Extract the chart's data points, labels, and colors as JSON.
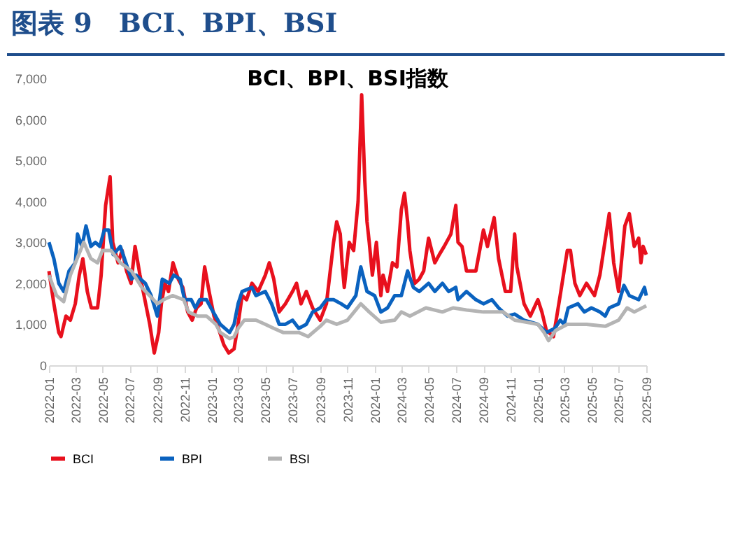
{
  "chart_data": {
    "type": "line",
    "title": "图表 9　BCI、BPI、BSI",
    "subtitle": "BCI、BPI、BSI指数",
    "xlim": [
      "2022-01-01",
      "2025-09-01"
    ],
    "xticks": [
      "2022-01",
      "2022-03",
      "2022-05",
      "2022-07",
      "2022-09",
      "2022-11",
      "2023-01",
      "2023-03",
      "2023-05",
      "2023-07",
      "2023-09",
      "2023-11",
      "2024-01",
      "2024-03",
      "2024-05",
      "2024-07",
      "2024-09",
      "2024-11",
      "2025-01",
      "2025-03",
      "2025-05",
      "2025-07",
      "2025-09"
    ],
    "ylim": [
      0,
      7000
    ],
    "yticks": [
      0,
      {
        "value": 1000,
        "label": "1,000"
      },
      {
        "value": 2000,
        "label": "2,000"
      },
      {
        "value": 3000,
        "label": "3,000"
      },
      {
        "value": 4000,
        "label": "4,000"
      },
      {
        "value": 5000,
        "label": "5,000"
      },
      {
        "value": 6000,
        "label": "6,000"
      },
      {
        "value": 7000,
        "label": "7,000"
      }
    ],
    "grid": false,
    "legend": "bottom",
    "marker": "none",
    "line_style": "solid",
    "series": [
      {
        "name": "BCI",
        "color": "#e8101d",
        "x": [
          "2022-01-01",
          "2022-01-12",
          "2022-01-23",
          "2022-01-28",
          "2022-02-08",
          "2022-02-18",
          "2022-03-01",
          "2022-03-10",
          "2022-03-18",
          "2022-03-28",
          "2022-04-06",
          "2022-04-20",
          "2022-04-28",
          "2022-05-08",
          "2022-05-18",
          "2022-05-24",
          "2022-06-05",
          "2022-06-14",
          "2022-06-24",
          "2022-07-04",
          "2022-07-13",
          "2022-07-24",
          "2022-08-15",
          "2022-08-25",
          "2022-09-04",
          "2022-09-10",
          "2022-09-18",
          "2022-09-26",
          "2022-10-06",
          "2022-10-18",
          "2022-10-28",
          "2022-11-08",
          "2022-11-18",
          "2022-11-28",
          "2022-12-08",
          "2022-12-16",
          "2022-12-26",
          "2023-01-06",
          "2023-01-16",
          "2023-01-28",
          "2023-02-08",
          "2023-02-20",
          "2023-03-01",
          "2023-03-10",
          "2023-03-20",
          "2023-04-01",
          "2023-04-15",
          "2023-05-01",
          "2023-05-10",
          "2023-05-20",
          "2023-06-01",
          "2023-06-15",
          "2023-07-01",
          "2023-07-10",
          "2023-07-20",
          "2023-08-01",
          "2023-08-15",
          "2023-09-01",
          "2023-09-15",
          "2023-10-01",
          "2023-10-08",
          "2023-10-16",
          "2023-10-20",
          "2023-10-25",
          "2023-11-05",
          "2023-11-15",
          "2023-11-25",
          "2023-12-03",
          "2023-12-10",
          "2023-12-15",
          "2023-12-20",
          "2023-12-27",
          "2024-01-05",
          "2024-01-15",
          "2024-01-20",
          "2024-01-30",
          "2024-02-10",
          "2024-02-20",
          "2024-03-01",
          "2024-03-08",
          "2024-03-15",
          "2024-03-20",
          "2024-03-31",
          "2024-04-10",
          "2024-04-20",
          "2024-05-01",
          "2024-05-15",
          "2024-05-25",
          "2024-06-05",
          "2024-06-20",
          "2024-07-01",
          "2024-07-06",
          "2024-07-15",
          "2024-07-25",
          "2024-08-01",
          "2024-08-15",
          "2024-09-01",
          "2024-09-10",
          "2024-09-25",
          "2024-10-05",
          "2024-10-20",
          "2024-11-01",
          "2024-11-10",
          "2024-11-15",
          "2024-12-01",
          "2024-12-15",
          "2025-01-01",
          "2025-01-10",
          "2025-01-20",
          "2025-02-05",
          "2025-02-20",
          "2025-03-08",
          "2025-03-15",
          "2025-03-25",
          "2025-04-05",
          "2025-04-20",
          "2025-05-08",
          "2025-05-20",
          "2025-06-10",
          "2025-06-20",
          "2025-07-01",
          "2025-07-15",
          "2025-07-25",
          "2025-08-05",
          "2025-08-15",
          "2025-08-20",
          "2025-08-25",
          "2025-09-01"
        ],
        "values": [
          2300,
          1500,
          800,
          700,
          1200,
          1100,
          1500,
          2200,
          2600,
          1800,
          1400,
          1400,
          2200,
          3900,
          4600,
          3000,
          2500,
          2800,
          2300,
          2000,
          2900,
          2200,
          1000,
          300,
          800,
          1500,
          2000,
          1800,
          2500,
          2100,
          1900,
          1300,
          1100,
          1400,
          1500,
          2400,
          1800,
          1200,
          900,
          500,
          300,
          400,
          1000,
          1700,
          1600,
          2000,
          1800,
          2200,
          2500,
          2100,
          1300,
          1500,
          1800,
          2000,
          1500,
          1800,
          1400,
          1100,
          1500,
          3000,
          3500,
          3200,
          2500,
          1900,
          3000,
          2800,
          4000,
          6600,
          4500,
          3500,
          3000,
          2200,
          3000,
          1700,
          2200,
          1800,
          2500,
          2400,
          3800,
          4200,
          3500,
          2800,
          2000,
          2100,
          2300,
          3100,
          2500,
          2700,
          2900,
          3200,
          3900,
          3000,
          2900,
          2300,
          2300,
          2300,
          3300,
          2900,
          3600,
          2600,
          1800,
          1800,
          3200,
          2400,
          1500,
          1200,
          1600,
          1300,
          850,
          700,
          1700,
          2800,
          2800,
          2000,
          1700,
          2000,
          1700,
          2200,
          3700,
          2500,
          1800,
          3400,
          3700,
          2900,
          3100,
          2500,
          2900,
          2700
        ]
      },
      {
        "name": "BPI",
        "color": "#0a62bf",
        "x": [
          "2022-01-01",
          "2022-01-12",
          "2022-01-23",
          "2022-02-03",
          "2022-02-15",
          "2022-03-01",
          "2022-03-06",
          "2022-03-16",
          "2022-03-25",
          "2022-04-05",
          "2022-04-15",
          "2022-04-25",
          "2022-05-05",
          "2022-05-15",
          "2022-05-25",
          "2022-06-10",
          "2022-07-05",
          "2022-07-15",
          "2022-08-05",
          "2022-08-18",
          "2022-09-01",
          "2022-09-12",
          "2022-09-28",
          "2022-10-08",
          "2022-10-22",
          "2022-11-01",
          "2022-11-16",
          "2022-11-25",
          "2022-12-05",
          "2022-12-20",
          "2022-12-30",
          "2023-01-20",
          "2023-02-10",
          "2023-02-20",
          "2023-03-01",
          "2023-03-10",
          "2023-04-01",
          "2023-04-10",
          "2023-05-01",
          "2023-05-15",
          "2023-06-01",
          "2023-06-15",
          "2023-07-01",
          "2023-07-15",
          "2023-08-01",
          "2023-08-15",
          "2023-09-01",
          "2023-09-15",
          "2023-10-01",
          "2023-10-18",
          "2023-11-01",
          "2023-11-20",
          "2023-12-01",
          "2023-12-15",
          "2024-01-01",
          "2024-01-15",
          "2024-01-30",
          "2024-02-15",
          "2024-03-01",
          "2024-03-15",
          "2024-03-28",
          "2024-04-10",
          "2024-05-01",
          "2024-05-15",
          "2024-06-01",
          "2024-06-15",
          "2024-07-01",
          "2024-07-06",
          "2024-07-25",
          "2024-08-15",
          "2024-09-01",
          "2024-09-20",
          "2024-10-05",
          "2024-10-25",
          "2024-11-10",
          "2024-12-01",
          "2025-01-01",
          "2025-01-20",
          "2025-02-08",
          "2025-02-20",
          "2025-03-01",
          "2025-03-10",
          "2025-04-01",
          "2025-04-15",
          "2025-05-01",
          "2025-05-20",
          "2025-06-01",
          "2025-06-10",
          "2025-07-01",
          "2025-07-13",
          "2025-07-25",
          "2025-08-15",
          "2025-08-28",
          "2025-09-01"
        ],
        "values": [
          3000,
          2600,
          2000,
          1800,
          2300,
          2500,
          3200,
          2900,
          3400,
          2900,
          3000,
          2900,
          3300,
          3300,
          2700,
          2900,
          2100,
          2200,
          2000,
          1700,
          1200,
          2100,
          2000,
          2200,
          2100,
          1600,
          1600,
          1400,
          1600,
          1600,
          1400,
          1000,
          800,
          1000,
          1500,
          1800,
          1900,
          1700,
          1800,
          1500,
          1000,
          1000,
          1100,
          900,
          1000,
          1300,
          1400,
          1600,
          1600,
          1500,
          1400,
          1700,
          2400,
          1800,
          1700,
          1300,
          1400,
          1700,
          1700,
          2300,
          1900,
          1800,
          2000,
          1800,
          2000,
          1800,
          1900,
          1600,
          1800,
          1600,
          1500,
          1600,
          1400,
          1200,
          1250,
          1100,
          1000,
          800,
          900,
          1100,
          1000,
          1400,
          1500,
          1300,
          1400,
          1300,
          1200,
          1400,
          1500,
          1950,
          1700,
          1600,
          1900,
          1700
        ]
      },
      {
        "name": "BSI",
        "color": "#b4b4b4",
        "x": [
          "2022-01-01",
          "2022-01-18",
          "2022-02-03",
          "2022-02-18",
          "2022-03-05",
          "2022-03-20",
          "2022-04-05",
          "2022-04-20",
          "2022-05-01",
          "2022-05-20",
          "2022-06-10",
          "2022-07-05",
          "2022-07-28",
          "2022-09-01",
          "2022-09-15",
          "2022-10-05",
          "2022-10-30",
          "2022-11-10",
          "2022-11-30",
          "2022-12-20",
          "2023-01-10",
          "2023-01-20",
          "2023-02-10",
          "2023-02-20",
          "2023-03-01",
          "2023-03-15",
          "2023-04-10",
          "2023-05-01",
          "2023-05-20",
          "2023-06-10",
          "2023-07-15",
          "2023-08-05",
          "2023-09-01",
          "2023-09-15",
          "2023-10-08",
          "2023-11-01",
          "2023-12-01",
          "2023-12-20",
          "2024-01-15",
          "2024-02-15",
          "2024-03-01",
          "2024-03-20",
          "2024-04-25",
          "2024-06-01",
          "2024-06-25",
          "2024-07-25",
          "2024-09-01",
          "2024-10-15",
          "2024-11-10",
          "2025-01-01",
          "2025-01-15",
          "2025-01-25",
          "2025-02-10",
          "2025-03-08",
          "2025-04-20",
          "2025-06-01",
          "2025-07-01",
          "2025-07-20",
          "2025-08-05",
          "2025-09-01"
        ],
        "values": [
          2200,
          1700,
          1550,
          2200,
          2600,
          3000,
          2600,
          2500,
          2800,
          2800,
          2500,
          2300,
          1900,
          1500,
          1600,
          1700,
          1600,
          1300,
          1200,
          1200,
          1000,
          800,
          650,
          700,
          900,
          1100,
          1100,
          1000,
          900,
          800,
          800,
          700,
          950,
          1100,
          1000,
          1100,
          1500,
          1300,
          1050,
          1100,
          1300,
          1200,
          1400,
          1300,
          1400,
          1350,
          1300,
          1300,
          1100,
          1000,
          800,
          600,
          850,
          1000,
          1000,
          950,
          1100,
          1400,
          1300,
          1450
        ]
      }
    ]
  }
}
